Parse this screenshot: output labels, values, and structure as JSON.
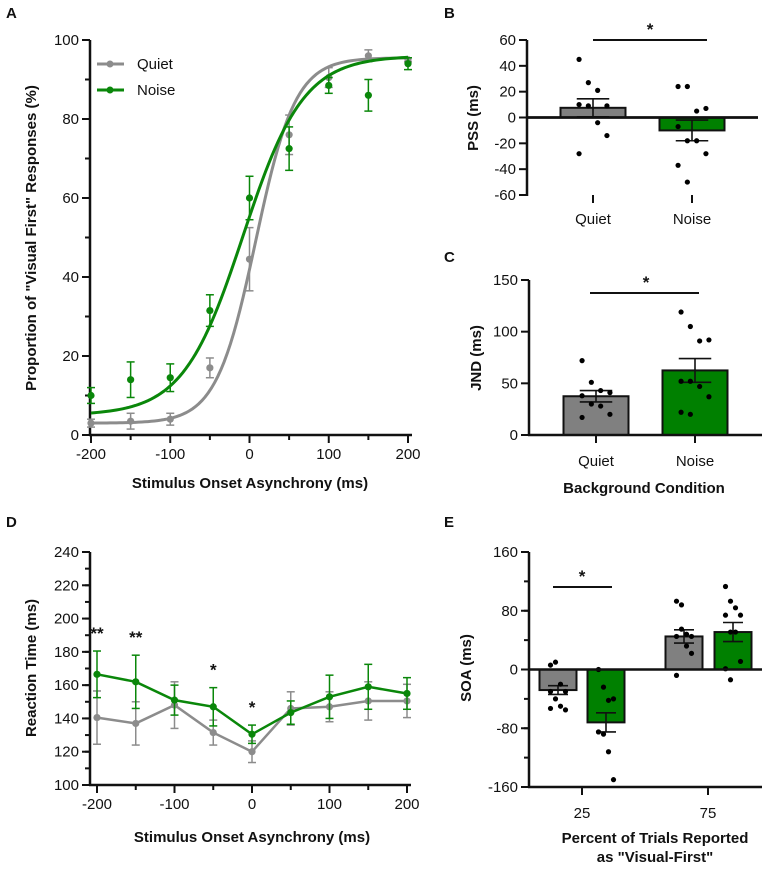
{
  "colors": {
    "quiet": "#8c8c8c",
    "quiet_bar": "#808080",
    "noise": "#0a870a",
    "noise_bar": "#008000",
    "axis": "#111111"
  },
  "chart_data": [
    {
      "panel": "A",
      "type": "line",
      "xlabel": "Stimulus Onset Asynchrony (ms)",
      "ylabel": "Proportion of \"Visual First\" Responses (%)",
      "xlim": [
        -200,
        200
      ],
      "ylim": [
        0,
        100
      ],
      "xticks": [
        -200,
        -100,
        0,
        100,
        200
      ],
      "yticks": [
        0,
        20,
        40,
        60,
        80,
        100
      ],
      "legend": "top-left",
      "x": [
        -200,
        -150,
        -100,
        -50,
        0,
        50,
        100,
        150,
        200
      ],
      "series": [
        {
          "name": "Quiet",
          "values": [
            3,
            3.5,
            4,
            17,
            44.5,
            76,
            90.5,
            96,
            95
          ],
          "sem": [
            1,
            2,
            1.5,
            2.5,
            8,
            5,
            2.5,
            1.5,
            0.5
          ],
          "fit": {
            "lower": 3,
            "upper": 95.5,
            "mu": 8,
            "scale": 25
          }
        },
        {
          "name": "Noise",
          "values": [
            10,
            14,
            14.5,
            31.5,
            60,
            72.5,
            88.5,
            86,
            94
          ],
          "sem": [
            2,
            4.5,
            3.5,
            4,
            5.5,
            5.5,
            2,
            4,
            1.5
          ],
          "fit": {
            "lower": 5,
            "upper": 96,
            "mu": -8,
            "scale": 38
          }
        }
      ]
    },
    {
      "panel": "B",
      "type": "bar",
      "ylabel": "PSS (ms)",
      "ylim": [
        -60,
        60
      ],
      "yticks": [
        -60,
        -40,
        -20,
        0,
        20,
        40,
        60
      ],
      "categories": [
        "Quiet",
        "Noise"
      ],
      "values": [
        7.5,
        -10
      ],
      "sem": [
        7,
        8
      ],
      "points": [
        [
          45,
          27,
          21,
          9,
          10,
          9,
          -4,
          -14,
          -28
        ],
        [
          24,
          24,
          5,
          7,
          -7,
          -18,
          -18,
          -28,
          -37,
          -50
        ]
      ],
      "significance": "*"
    },
    {
      "panel": "C",
      "type": "bar",
      "xlabel": "Background Condition",
      "ylabel": "JND (ms)",
      "ylim": [
        0,
        150
      ],
      "yticks": [
        0,
        50,
        100,
        150
      ],
      "categories": [
        "Quiet",
        "Noise"
      ],
      "values": [
        37.5,
        62.5
      ],
      "sem": [
        5.5,
        11.5
      ],
      "points": [
        [
          72,
          51,
          43,
          41,
          38,
          30,
          28,
          20,
          17
        ],
        [
          119,
          105,
          91,
          92,
          52,
          52,
          47,
          37,
          22,
          20
        ]
      ],
      "significance": "*"
    },
    {
      "panel": "D",
      "type": "line",
      "xlabel": "Stimulus Onset Asynchrony (ms)",
      "ylabel": "Reaction Time (ms)",
      "xlim": [
        -200,
        200
      ],
      "ylim": [
        100,
        240
      ],
      "xticks": [
        -200,
        -100,
        0,
        100,
        200
      ],
      "yticks": [
        100,
        120,
        140,
        160,
        180,
        200,
        220,
        240
      ],
      "x": [
        -200,
        -150,
        -100,
        -50,
        0,
        50,
        100,
        150,
        200
      ],
      "series": [
        {
          "name": "Quiet",
          "values": [
            140.5,
            137,
            148,
            131.5,
            120,
            146,
            147,
            150.5,
            150.5
          ],
          "sem": [
            16,
            13,
            14,
            7.5,
            6.5,
            10,
            9,
            11.5,
            10
          ]
        },
        {
          "name": "Noise",
          "values": [
            166.5,
            162,
            151,
            147,
            130.5,
            143.5,
            153,
            159,
            155
          ],
          "sem": [
            14,
            16,
            9,
            11.5,
            5.5,
            7,
            13,
            13.5,
            9.5
          ]
        }
      ],
      "annotations": [
        {
          "x": -200,
          "text": "**"
        },
        {
          "x": -150,
          "text": "**"
        },
        {
          "x": -50,
          "text": "*"
        },
        {
          "x": 0,
          "text": "*"
        }
      ]
    },
    {
      "panel": "E",
      "type": "bar",
      "xlabel": [
        "Percent of Trials Reported",
        "as \"Visual-First\""
      ],
      "ylabel": "SOA (ms)",
      "ylim": [
        -160,
        160
      ],
      "yticks": [
        -160,
        -80,
        0,
        80,
        160
      ],
      "categories": [
        "25",
        "75"
      ],
      "series": [
        {
          "name": "Quiet",
          "values": [
            -28,
            45
          ],
          "sem": [
            6,
            9
          ],
          "points": [
            [
              6,
              10,
              -20,
              -30,
              -30,
              -40,
              -50,
              -55,
              -53
            ],
            [
              93,
              88,
              48,
              45,
              45,
              55,
              32,
              22,
              -8
            ]
          ]
        },
        {
          "name": "Noise",
          "values": [
            -72,
            51
          ],
          "sem": [
            13,
            13
          ],
          "points": [
            [
              0,
              -24,
              -42,
              -40,
              -85,
              -88,
              -112,
              -150,
              -85
            ],
            [
              113,
              93,
              84,
              74,
              74,
              51,
              51,
              11,
              1,
              -14
            ]
          ]
        }
      ],
      "significance": {
        "category": "25",
        "text": "*"
      }
    }
  ],
  "panel_labels": [
    "A",
    "B",
    "C",
    "D",
    "E"
  ]
}
